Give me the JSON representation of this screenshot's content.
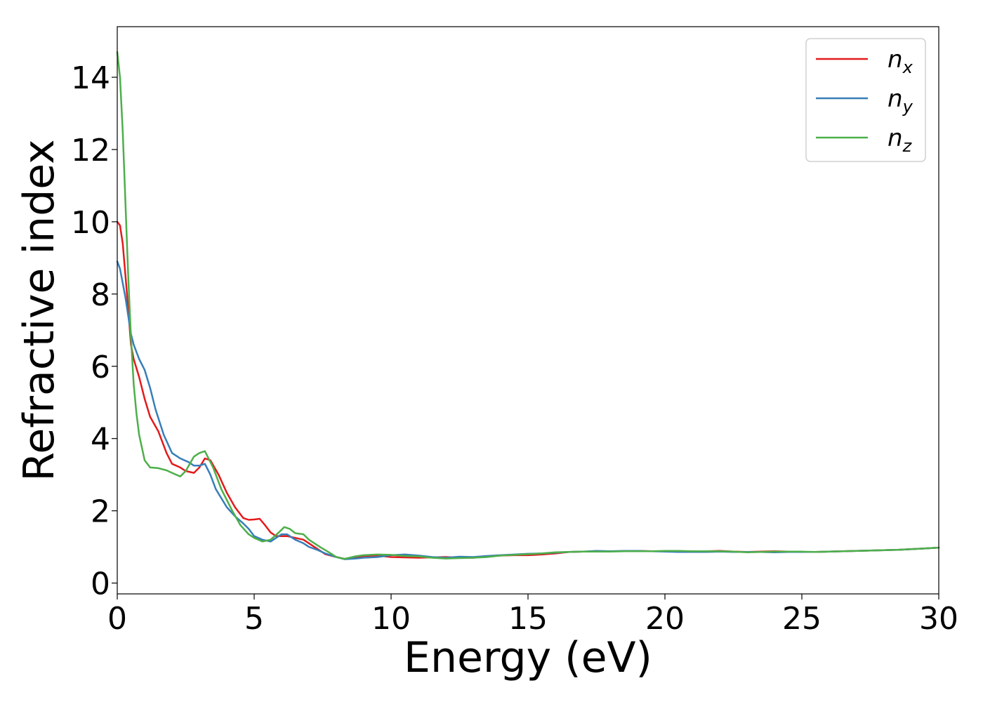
{
  "chart_data": {
    "type": "line",
    "title": "",
    "xlabel": "Energy (eV)",
    "ylabel": "Refractive index",
    "xlim": [
      0,
      30
    ],
    "ylim": [
      -0.3,
      15.4
    ],
    "xticks": [
      0,
      5,
      10,
      15,
      20,
      25,
      30
    ],
    "yticks": [
      0,
      2,
      4,
      6,
      8,
      10,
      12,
      14
    ],
    "grid": false,
    "legend_position": "top-right",
    "series": [
      {
        "name": "n",
        "subscript": "x",
        "color": "#e41a1c",
        "points": [
          [
            0,
            10.0
          ],
          [
            0.1,
            9.9
          ],
          [
            0.2,
            9.4
          ],
          [
            0.3,
            8.5
          ],
          [
            0.4,
            7.6
          ],
          [
            0.5,
            6.6
          ],
          [
            0.6,
            6.2
          ],
          [
            0.8,
            5.7
          ],
          [
            1.0,
            5.1
          ],
          [
            1.2,
            4.6
          ],
          [
            1.5,
            4.2
          ],
          [
            1.8,
            3.6
          ],
          [
            2.0,
            3.3
          ],
          [
            2.3,
            3.2
          ],
          [
            2.5,
            3.1
          ],
          [
            2.8,
            3.05
          ],
          [
            3.0,
            3.2
          ],
          [
            3.2,
            3.45
          ],
          [
            3.4,
            3.4
          ],
          [
            3.7,
            3.0
          ],
          [
            4.0,
            2.5
          ],
          [
            4.3,
            2.1
          ],
          [
            4.6,
            1.8
          ],
          [
            4.8,
            1.75
          ],
          [
            5.0,
            1.76
          ],
          [
            5.2,
            1.78
          ],
          [
            5.4,
            1.6
          ],
          [
            5.6,
            1.4
          ],
          [
            5.8,
            1.3
          ],
          [
            6.0,
            1.3
          ],
          [
            6.2,
            1.3
          ],
          [
            6.5,
            1.25
          ],
          [
            6.8,
            1.2
          ],
          [
            7.0,
            1.1
          ],
          [
            7.3,
            0.95
          ],
          [
            7.6,
            0.8
          ],
          [
            8.0,
            0.72
          ],
          [
            8.3,
            0.67
          ],
          [
            8.7,
            0.7
          ],
          [
            9.0,
            0.75
          ],
          [
            9.5,
            0.76
          ],
          [
            10,
            0.72
          ],
          [
            10.5,
            0.71
          ],
          [
            11,
            0.7
          ],
          [
            11.5,
            0.71
          ],
          [
            12,
            0.72
          ],
          [
            12.5,
            0.7
          ],
          [
            13,
            0.7
          ],
          [
            13.5,
            0.74
          ],
          [
            14,
            0.76
          ],
          [
            14.5,
            0.77
          ],
          [
            15,
            0.77
          ],
          [
            15.5,
            0.79
          ],
          [
            16,
            0.82
          ],
          [
            16.5,
            0.86
          ],
          [
            17,
            0.87
          ],
          [
            17.5,
            0.87
          ],
          [
            18,
            0.88
          ],
          [
            18.5,
            0.88
          ],
          [
            19,
            0.89
          ],
          [
            19.5,
            0.88
          ],
          [
            20,
            0.88
          ],
          [
            20.5,
            0.88
          ],
          [
            21,
            0.88
          ],
          [
            21.5,
            0.88
          ],
          [
            22,
            0.89
          ],
          [
            22.5,
            0.87
          ],
          [
            23,
            0.86
          ],
          [
            23.5,
            0.87
          ],
          [
            24,
            0.88
          ],
          [
            24.5,
            0.87
          ],
          [
            25,
            0.86
          ],
          [
            25.5,
            0.86
          ],
          [
            26,
            0.87
          ],
          [
            26.5,
            0.88
          ],
          [
            27,
            0.89
          ],
          [
            27.5,
            0.9
          ],
          [
            28,
            0.91
          ],
          [
            28.5,
            0.92
          ],
          [
            29,
            0.94
          ],
          [
            29.5,
            0.96
          ],
          [
            30,
            0.98
          ]
        ]
      },
      {
        "name": "n",
        "subscript": "y",
        "color": "#377eb8",
        "points": [
          [
            0,
            8.9
          ],
          [
            0.1,
            8.7
          ],
          [
            0.2,
            8.3
          ],
          [
            0.3,
            7.9
          ],
          [
            0.4,
            7.4
          ],
          [
            0.5,
            6.9
          ],
          [
            0.6,
            6.6
          ],
          [
            0.8,
            6.2
          ],
          [
            1.0,
            5.9
          ],
          [
            1.2,
            5.4
          ],
          [
            1.4,
            4.8
          ],
          [
            1.7,
            4.1
          ],
          [
            2.0,
            3.6
          ],
          [
            2.3,
            3.45
          ],
          [
            2.6,
            3.35
          ],
          [
            2.8,
            3.25
          ],
          [
            3.0,
            3.25
          ],
          [
            3.2,
            3.3
          ],
          [
            3.4,
            3.0
          ],
          [
            3.6,
            2.6
          ],
          [
            4.0,
            2.1
          ],
          [
            4.3,
            1.85
          ],
          [
            4.6,
            1.65
          ],
          [
            4.8,
            1.5
          ],
          [
            5.0,
            1.3
          ],
          [
            5.3,
            1.2
          ],
          [
            5.6,
            1.15
          ],
          [
            5.8,
            1.25
          ],
          [
            6.0,
            1.35
          ],
          [
            6.2,
            1.35
          ],
          [
            6.5,
            1.2
          ],
          [
            6.8,
            1.1
          ],
          [
            7.0,
            1.0
          ],
          [
            7.3,
            0.92
          ],
          [
            7.6,
            0.82
          ],
          [
            8.0,
            0.72
          ],
          [
            8.3,
            0.66
          ],
          [
            8.7,
            0.68
          ],
          [
            9.0,
            0.7
          ],
          [
            9.5,
            0.72
          ],
          [
            10,
            0.77
          ],
          [
            10.5,
            0.79
          ],
          [
            11,
            0.76
          ],
          [
            11.5,
            0.72
          ],
          [
            12,
            0.7
          ],
          [
            12.5,
            0.73
          ],
          [
            13,
            0.72
          ],
          [
            13.5,
            0.75
          ],
          [
            14,
            0.77
          ],
          [
            14.5,
            0.79
          ],
          [
            15,
            0.81
          ],
          [
            15.5,
            0.82
          ],
          [
            16,
            0.84
          ],
          [
            16.5,
            0.86
          ],
          [
            17,
            0.87
          ],
          [
            17.5,
            0.89
          ],
          [
            18,
            0.88
          ],
          [
            18.5,
            0.89
          ],
          [
            19,
            0.89
          ],
          [
            19.5,
            0.88
          ],
          [
            20,
            0.87
          ],
          [
            20.5,
            0.86
          ],
          [
            21,
            0.86
          ],
          [
            21.5,
            0.86
          ],
          [
            22,
            0.87
          ],
          [
            22.5,
            0.86
          ],
          [
            23,
            0.86
          ],
          [
            23.5,
            0.86
          ],
          [
            24,
            0.85
          ],
          [
            24.5,
            0.86
          ],
          [
            25,
            0.86
          ],
          [
            25.5,
            0.86
          ],
          [
            26,
            0.87
          ],
          [
            26.5,
            0.88
          ],
          [
            27,
            0.89
          ],
          [
            27.5,
            0.9
          ],
          [
            28,
            0.91
          ],
          [
            28.5,
            0.92
          ],
          [
            29,
            0.94
          ],
          [
            29.5,
            0.96
          ],
          [
            30,
            0.98
          ]
        ]
      },
      {
        "name": "n",
        "subscript": "z",
        "color": "#4daf4a",
        "points": [
          [
            0,
            14.7
          ],
          [
            0.1,
            14.0
          ],
          [
            0.2,
            12.5
          ],
          [
            0.3,
            10.5
          ],
          [
            0.4,
            8.5
          ],
          [
            0.5,
            6.8
          ],
          [
            0.6,
            5.5
          ],
          [
            0.7,
            4.7
          ],
          [
            0.8,
            4.1
          ],
          [
            1.0,
            3.4
          ],
          [
            1.2,
            3.2
          ],
          [
            1.5,
            3.18
          ],
          [
            1.8,
            3.12
          ],
          [
            2.0,
            3.05
          ],
          [
            2.3,
            2.95
          ],
          [
            2.5,
            3.1
          ],
          [
            2.8,
            3.5
          ],
          [
            3.0,
            3.6
          ],
          [
            3.2,
            3.65
          ],
          [
            3.5,
            3.2
          ],
          [
            3.8,
            2.6
          ],
          [
            4.2,
            2.0
          ],
          [
            4.5,
            1.6
          ],
          [
            4.8,
            1.35
          ],
          [
            5.0,
            1.25
          ],
          [
            5.3,
            1.15
          ],
          [
            5.6,
            1.2
          ],
          [
            5.9,
            1.4
          ],
          [
            6.1,
            1.55
          ],
          [
            6.3,
            1.5
          ],
          [
            6.5,
            1.38
          ],
          [
            6.8,
            1.35
          ],
          [
            7.0,
            1.2
          ],
          [
            7.4,
            1.0
          ],
          [
            7.8,
            0.82
          ],
          [
            8.0,
            0.72
          ],
          [
            8.3,
            0.67
          ],
          [
            8.7,
            0.74
          ],
          [
            9.0,
            0.77
          ],
          [
            9.5,
            0.79
          ],
          [
            10,
            0.78
          ],
          [
            10.5,
            0.75
          ],
          [
            11,
            0.74
          ],
          [
            11.5,
            0.7
          ],
          [
            12,
            0.68
          ],
          [
            12.5,
            0.69
          ],
          [
            13,
            0.7
          ],
          [
            13.5,
            0.72
          ],
          [
            14,
            0.76
          ],
          [
            14.5,
            0.78
          ],
          [
            15,
            0.8
          ],
          [
            15.5,
            0.82
          ],
          [
            16,
            0.85
          ],
          [
            16.5,
            0.86
          ],
          [
            17,
            0.87
          ],
          [
            17.5,
            0.87
          ],
          [
            18,
            0.87
          ],
          [
            18.5,
            0.88
          ],
          [
            19,
            0.88
          ],
          [
            19.5,
            0.88
          ],
          [
            20,
            0.89
          ],
          [
            20.5,
            0.89
          ],
          [
            21,
            0.88
          ],
          [
            21.5,
            0.88
          ],
          [
            22,
            0.88
          ],
          [
            22.5,
            0.87
          ],
          [
            23,
            0.85
          ],
          [
            23.5,
            0.86
          ],
          [
            24,
            0.87
          ],
          [
            24.5,
            0.87
          ],
          [
            25,
            0.87
          ],
          [
            25.5,
            0.86
          ],
          [
            26,
            0.87
          ],
          [
            26.5,
            0.88
          ],
          [
            27,
            0.89
          ],
          [
            27.5,
            0.9
          ],
          [
            28,
            0.91
          ],
          [
            28.5,
            0.92
          ],
          [
            29,
            0.94
          ],
          [
            29.5,
            0.96
          ],
          [
            30,
            0.98
          ]
        ]
      }
    ]
  }
}
